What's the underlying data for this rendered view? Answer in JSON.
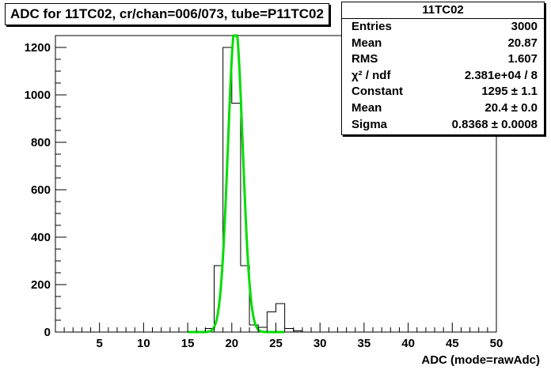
{
  "title": "ADC for 11TC02,  cr/chan=006/073,  tube=P11TC02",
  "stats": {
    "name": "11TC02",
    "rows": [
      {
        "label": "Entries",
        "value": "3000"
      },
      {
        "label": "Mean",
        "value": "20.87"
      },
      {
        "label": "RMS",
        "value": "1.607"
      },
      {
        "label": "χ² / ndf",
        "value": "2.381e+04 / 8"
      },
      {
        "label": "Constant",
        "value": "1295 ± 1.1"
      },
      {
        "label": "Mean",
        "value": "20.4 ± 0.0"
      },
      {
        "label": "Sigma",
        "value": "0.8368 ± 0.0008"
      }
    ]
  },
  "chart_data": {
    "type": "bar",
    "xlabel": "ADC (mode=rawAdc)",
    "ylabel": "",
    "xlim": [
      0,
      50
    ],
    "ylim": [
      0,
      1250
    ],
    "xticks": [
      5,
      10,
      15,
      20,
      25,
      30,
      35,
      40,
      45,
      50
    ],
    "yticks": [
      0,
      200,
      400,
      600,
      800,
      1000,
      1200
    ],
    "histogram": {
      "bin_width": 1,
      "bin_low_edges": [
        16,
        17,
        18,
        19,
        20,
        21,
        22,
        23,
        24,
        25,
        26,
        27
      ],
      "counts": [
        2,
        15,
        280,
        1200,
        965,
        280,
        30,
        20,
        85,
        120,
        15,
        5
      ]
    },
    "fit": {
      "function": "gaus",
      "constant": 1295,
      "mean": 20.4,
      "sigma": 0.8368,
      "color": "#00dd00"
    }
  }
}
